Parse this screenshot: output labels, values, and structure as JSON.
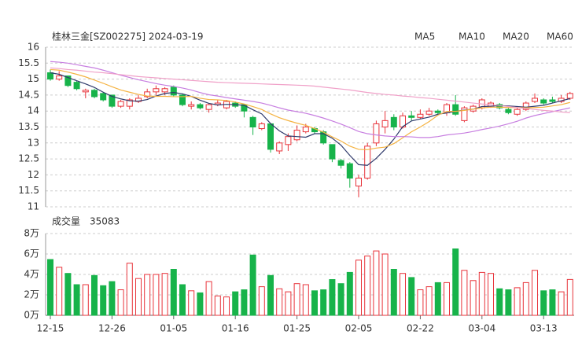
{
  "chart_data": {
    "type": "candlestick",
    "title": "桂林三金[SZ002275] 2024-03-19",
    "volume_title": "成交量",
    "categories": [
      "12-15",
      null,
      null,
      null,
      null,
      null,
      null,
      "12-26",
      null,
      null,
      null,
      null,
      null,
      null,
      "01-05",
      null,
      null,
      null,
      null,
      null,
      null,
      "01-16",
      null,
      null,
      null,
      null,
      null,
      null,
      "01-25",
      null,
      null,
      null,
      null,
      null,
      null,
      "02-05",
      null,
      null,
      null,
      null,
      null,
      null,
      "02-22",
      null,
      null,
      null,
      null,
      null,
      null,
      "03-04",
      null,
      null,
      null,
      null,
      null,
      null,
      "03-13",
      null,
      null,
      null
    ],
    "open": [
      15.2,
      15.0,
      15.1,
      14.9,
      14.6,
      14.65,
      14.55,
      14.5,
      14.15,
      14.15,
      14.3,
      14.45,
      14.6,
      14.6,
      14.75,
      14.5,
      14.15,
      14.2,
      14.05,
      14.2,
      14.1,
      14.25,
      14.2,
      13.8,
      13.45,
      13.6,
      12.75,
      12.95,
      13.1,
      13.35,
      13.45,
      13.35,
      12.95,
      12.45,
      12.35,
      11.65,
      11.9,
      13.0,
      13.5,
      13.8,
      13.5,
      13.85,
      13.8,
      13.9,
      14.0,
      13.95,
      14.2,
      13.7,
      14.0,
      14.1,
      14.15,
      14.2,
      14.05,
      13.9,
      14.05,
      14.3,
      14.35,
      14.35,
      14.3,
      14.4
    ],
    "close": [
      15.0,
      15.1,
      14.8,
      14.7,
      14.65,
      14.45,
      14.35,
      14.15,
      14.3,
      14.35,
      14.4,
      14.6,
      14.7,
      14.7,
      14.5,
      14.2,
      14.2,
      14.1,
      14.2,
      14.25,
      14.3,
      14.15,
      14.0,
      13.5,
      13.6,
      12.8,
      13.0,
      13.2,
      13.4,
      13.5,
      13.35,
      13.0,
      12.5,
      12.3,
      11.9,
      11.9,
      12.9,
      13.6,
      13.7,
      13.5,
      13.85,
      13.8,
      13.9,
      14.0,
      13.95,
      14.2,
      13.9,
      14.1,
      14.15,
      14.35,
      14.25,
      14.1,
      13.95,
      14.05,
      14.25,
      14.4,
      14.25,
      14.3,
      14.4,
      14.55
    ],
    "low": [
      14.95,
      14.95,
      14.75,
      14.65,
      14.4,
      14.4,
      14.3,
      14.1,
      14.1,
      14.05,
      14.25,
      14.4,
      14.5,
      14.5,
      14.45,
      14.15,
      14.05,
      14.05,
      13.95,
      14.15,
      14.05,
      14.1,
      13.8,
      13.25,
      13.4,
      12.7,
      12.65,
      12.75,
      13.05,
      13.3,
      13.3,
      12.95,
      12.4,
      12.2,
      11.6,
      11.3,
      11.85,
      12.9,
      13.3,
      13.4,
      13.45,
      13.7,
      13.75,
      13.85,
      13.9,
      13.85,
      13.85,
      13.65,
      13.95,
      14.05,
      14.1,
      14.05,
      13.9,
      13.85,
      14.0,
      14.25,
      14.2,
      14.25,
      14.25,
      14.35
    ],
    "high": [
      15.3,
      15.25,
      15.1,
      14.95,
      14.7,
      14.7,
      14.6,
      14.5,
      14.35,
      14.4,
      14.5,
      14.7,
      14.8,
      14.75,
      14.8,
      14.55,
      14.3,
      14.25,
      14.25,
      14.35,
      14.35,
      14.3,
      14.2,
      13.85,
      13.65,
      13.6,
      13.05,
      13.3,
      13.55,
      13.6,
      13.5,
      13.4,
      12.95,
      12.5,
      12.4,
      12.0,
      13.0,
      13.7,
      14.0,
      13.9,
      13.95,
      14.0,
      14.05,
      14.1,
      14.05,
      14.25,
      14.5,
      14.15,
      14.2,
      14.4,
      14.3,
      14.25,
      14.1,
      14.1,
      14.3,
      14.55,
      14.4,
      14.45,
      14.5,
      14.6
    ],
    "volume": [
      54600,
      47000,
      41000,
      30000,
      30000,
      39000,
      29000,
      33000,
      25000,
      51000,
      36000,
      40000,
      40000,
      41000,
      45000,
      30000,
      24000,
      22000,
      33000,
      19000,
      18000,
      23000,
      25000,
      59000,
      28000,
      39000,
      26000,
      23000,
      31000,
      30000,
      24000,
      25000,
      35000,
      31000,
      42000,
      54000,
      58000,
      63000,
      60000,
      45000,
      41000,
      37000,
      25000,
      28000,
      32000,
      32000,
      65000,
      44000,
      34000,
      42000,
      41000,
      26000,
      25000,
      27000,
      32000,
      44000,
      24000,
      25000,
      23000,
      35083
    ],
    "ylim": [
      11,
      16
    ],
    "yticks": [
      11,
      11.5,
      12,
      12.5,
      13,
      13.5,
      14,
      14.5,
      15,
      15.5,
      16
    ],
    "volume_lim": [
      0,
      80000
    ],
    "volume_ticks": [
      {
        "value": 0,
        "label": "0万"
      },
      {
        "value": 20000,
        "label": "2万"
      },
      {
        "value": 40000,
        "label": "4万"
      },
      {
        "value": 60000,
        "label": "6万"
      },
      {
        "value": 80000,
        "label": "8万"
      }
    ],
    "up_color": "#e8333a",
    "down_color": "#17b34a",
    "grid": true,
    "ma": [
      {
        "name": "MA5",
        "color": "#2f3a6b",
        "values": [
          15.2,
          15.15,
          15.05,
          14.95,
          14.85,
          14.74,
          14.59,
          14.46,
          14.38,
          14.32,
          14.31,
          14.36,
          14.47,
          14.55,
          14.58,
          14.54,
          14.46,
          14.34,
          14.24,
          14.19,
          14.21,
          14.2,
          14.18,
          14.04,
          13.91,
          13.61,
          13.38,
          13.22,
          13.2,
          13.18,
          13.29,
          13.29,
          13.15,
          12.93,
          12.61,
          12.32,
          12.3,
          12.52,
          12.8,
          13.12,
          13.51,
          13.69,
          13.75,
          13.81,
          13.9,
          13.94,
          13.99,
          14.03,
          14.06,
          14.14,
          14.15,
          14.17,
          14.16,
          14.14,
          14.12,
          14.15,
          14.18,
          14.25,
          14.32,
          14.39
        ]
      },
      {
        "name": "MA10",
        "color": "#f5b342",
        "values": [
          15.3,
          15.28,
          15.22,
          15.15,
          15.07,
          14.97,
          14.87,
          14.76,
          14.66,
          14.59,
          14.52,
          14.47,
          14.46,
          14.46,
          14.45,
          14.45,
          14.46,
          14.4,
          14.36,
          14.35,
          14.33,
          14.28,
          14.22,
          14.14,
          14.05,
          13.91,
          13.79,
          13.7,
          13.62,
          13.55,
          13.45,
          13.34,
          13.19,
          13.06,
          12.9,
          12.8,
          12.79,
          12.84,
          12.87,
          12.98,
          13.16,
          13.35,
          13.5,
          13.67,
          13.87,
          13.99,
          13.99,
          14.02,
          14.06,
          14.1,
          14.12,
          14.12,
          14.11,
          14.11,
          14.1,
          14.11,
          14.12,
          14.16,
          14.2,
          14.27
        ]
      },
      {
        "name": "MA20",
        "color": "#c77ee0",
        "values": [
          15.55,
          15.53,
          15.5,
          15.45,
          15.4,
          15.35,
          15.28,
          15.2,
          15.12,
          15.05,
          14.98,
          14.92,
          14.86,
          14.81,
          14.77,
          14.72,
          14.66,
          14.58,
          14.51,
          14.47,
          14.42,
          14.38,
          14.34,
          14.3,
          14.25,
          14.18,
          14.1,
          14.03,
          13.98,
          13.93,
          13.86,
          13.78,
          13.69,
          13.59,
          13.48,
          13.36,
          13.29,
          13.25,
          13.22,
          13.2,
          13.2,
          13.19,
          13.17,
          13.17,
          13.2,
          13.25,
          13.28,
          13.31,
          13.36,
          13.42,
          13.47,
          13.53,
          13.6,
          13.68,
          13.78,
          13.86,
          13.92,
          13.98,
          14.04,
          14.1
        ]
      },
      {
        "name": "MA60",
        "color": "#f0a0c8",
        "values": [
          15.35,
          15.33,
          15.3,
          15.28,
          15.25,
          15.22,
          15.2,
          15.17,
          15.14,
          15.11,
          15.08,
          15.06,
          15.04,
          15.02,
          15.0,
          14.98,
          14.96,
          14.94,
          14.92,
          14.9,
          14.89,
          14.88,
          14.87,
          14.86,
          14.85,
          14.84,
          14.83,
          14.82,
          14.81,
          14.8,
          14.78,
          14.75,
          14.72,
          14.69,
          14.66,
          14.62,
          14.58,
          14.55,
          14.52,
          14.5,
          14.47,
          14.45,
          14.42,
          14.4,
          14.37,
          14.34,
          14.31,
          14.28,
          14.25,
          14.22,
          14.2,
          14.17,
          14.14,
          14.11,
          14.08,
          14.05,
          14.02,
          14.0,
          13.97,
          13.95
        ]
      }
    ]
  }
}
